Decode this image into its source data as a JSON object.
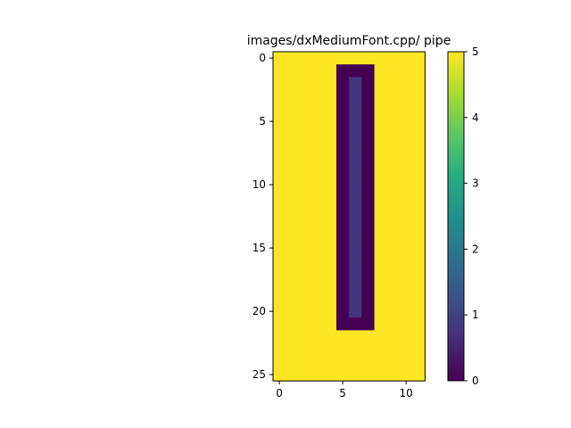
{
  "chart_data": {
    "type": "heatmap",
    "title": "images/dxMediumFont.cpp/ pipe",
    "xlabel": "",
    "ylabel": "",
    "rows": 26,
    "cols": 12,
    "colormap": "viridis",
    "value_range": [
      0,
      5
    ],
    "x_ticks": [
      0,
      5,
      10
    ],
    "y_ticks": [
      0,
      5,
      10,
      15,
      20,
      25
    ],
    "colorbar_ticks": [
      0,
      1,
      2,
      3,
      4,
      5
    ],
    "background_value": 5,
    "cell_values": [
      {
        "rows": [
          1,
          21
        ],
        "cols": [
          5,
          7
        ],
        "value": 0
      },
      {
        "rows": [
          2,
          20
        ],
        "cols": [
          6,
          6
        ],
        "value": 0.8
      }
    ]
  }
}
